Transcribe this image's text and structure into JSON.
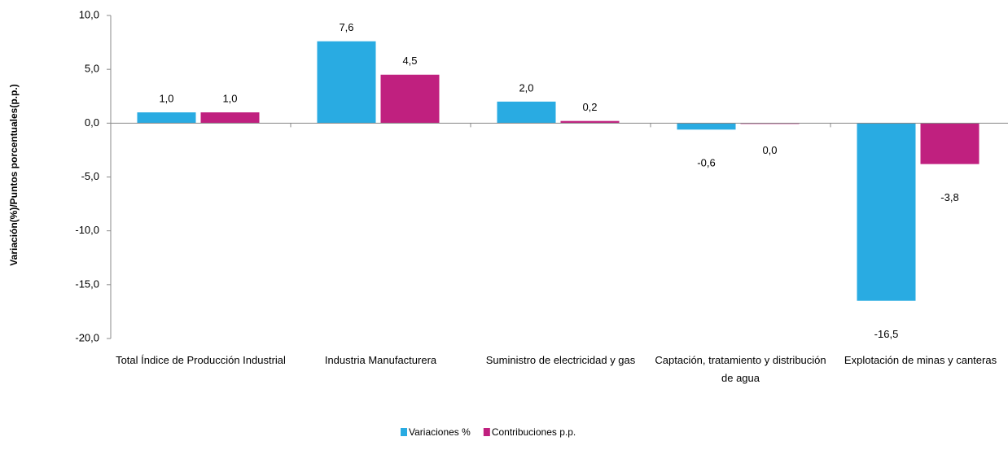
{
  "chart_data": {
    "type": "bar",
    "y_label": "Variación(%)/Puntos  porcentuales(p.p.)",
    "categories": [
      "Total Índice de Producción Industrial",
      "Industria Manufacturera",
      "Suministro de electricidad y gas",
      "Captación, tratamiento y distribución de agua",
      "Explotación de minas y canteras"
    ],
    "series": [
      {
        "name": "Variaciones %",
        "color": "#29abe2",
        "values": [
          1.0,
          7.6,
          2.0,
          -0.6,
          -16.5
        ],
        "value_labels": [
          "1,0",
          "7,6",
          "2,0",
          "-0,6",
          "-16,5"
        ]
      },
      {
        "name": "Contribuciones p.p.",
        "color": "#c0207f",
        "values": [
          1.0,
          4.5,
          0.2,
          0.0,
          -3.8
        ],
        "value_labels": [
          "1,0",
          "4,5",
          "0,2",
          "0,0",
          "-3,8"
        ]
      }
    ],
    "ylim": [
      -20,
      10
    ],
    "yticks": [
      {
        "value": -20,
        "label": "-20,0"
      },
      {
        "value": -15,
        "label": "-15,0"
      },
      {
        "value": -10,
        "label": "-10,0"
      },
      {
        "value": -5,
        "label": "-5,0"
      },
      {
        "value": 0,
        "label": "0,0"
      },
      {
        "value": 5,
        "label": "5,0"
      },
      {
        "value": 10,
        "label": "10,0"
      }
    ],
    "grid": false,
    "legend": "bottom"
  }
}
